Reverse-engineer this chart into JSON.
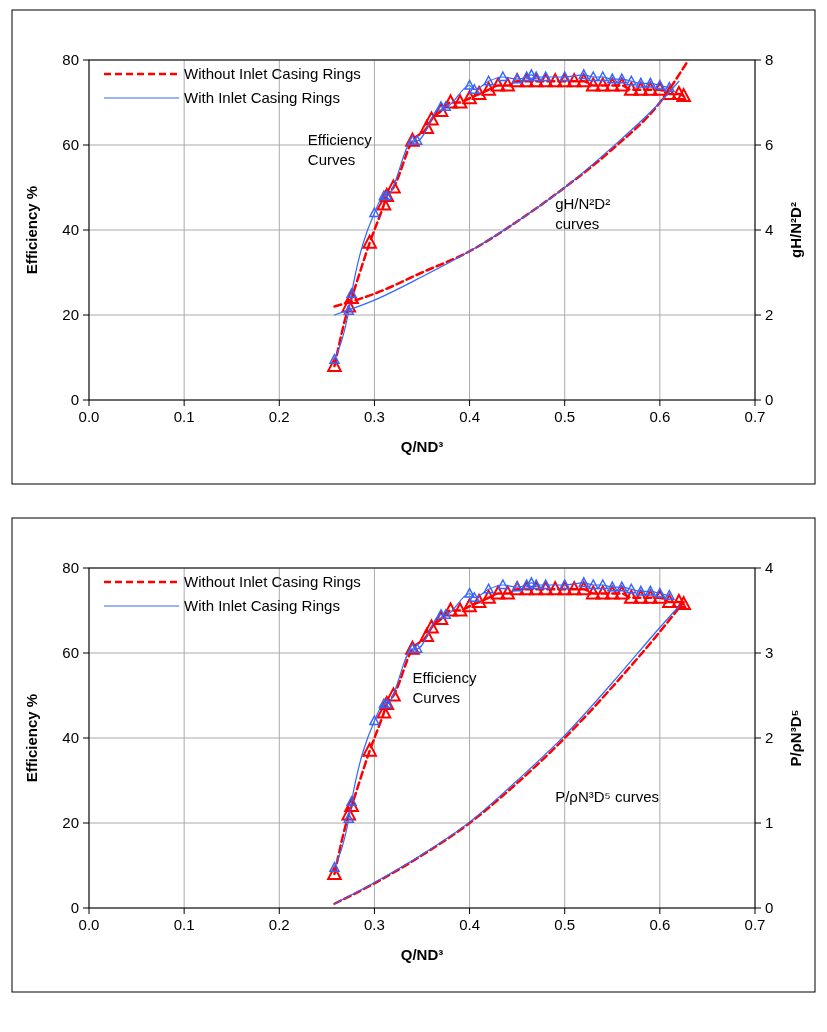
{
  "chart_data": [
    {
      "type": "line",
      "xlabel": "Q/ND³",
      "ylabel": "Efficiency %",
      "y2label": "gH/N²D²",
      "xlim": [
        0,
        0.7
      ],
      "xticks": [
        {
          "value": 0,
          "label": "0.0"
        },
        0.1,
        0.2,
        0.3,
        0.4,
        0.5,
        0.6,
        0.7
      ],
      "ylim": [
        0,
        80
      ],
      "yticks": [
        0,
        20,
        40,
        60,
        80
      ],
      "y2lim": [
        0,
        8
      ],
      "y2ticks": [
        0,
        2,
        4,
        6,
        8
      ],
      "grid": true,
      "legend": "top left",
      "annotations": [
        "Efficiency\nCurves",
        "gH/N²D²\ncurves"
      ],
      "series": [
        {
          "name": "Without Inlet Casing Rings",
          "color": "#ff0000",
          "line_style": "dashed",
          "marker": "triangle",
          "x": [
            0.258,
            0.273,
            0.276,
            0.295,
            0.31,
            0.313,
            0.32,
            0.34,
            0.355,
            0.36,
            0.37,
            0.38,
            0.39,
            0.4,
            0.41,
            0.42,
            0.43,
            0.44,
            0.45,
            0.46,
            0.47,
            0.48,
            0.49,
            0.5,
            0.51,
            0.52,
            0.53,
            0.54,
            0.55,
            0.56,
            0.57,
            0.58,
            0.59,
            0.6,
            0.61,
            0.62,
            0.625
          ],
          "values": [
            8,
            22,
            24,
            37,
            46,
            48,
            50,
            61,
            64,
            66,
            68,
            70,
            70,
            71,
            72,
            73,
            74,
            74,
            75,
            75,
            75,
            75,
            75,
            75,
            75,
            75,
            74,
            74,
            74,
            74,
            73,
            73,
            73,
            73,
            72,
            72,
            71.5
          ]
        },
        {
          "name": "With Inlet  Casing Rings",
          "color": "#3366ff",
          "line_style": "solid",
          "marker": "triangle",
          "x": [
            0.258,
            0.273,
            0.276,
            0.3,
            0.31,
            0.313,
            0.34,
            0.345,
            0.37,
            0.375,
            0.4,
            0.405,
            0.42,
            0.435,
            0.45,
            0.46,
            0.465,
            0.47,
            0.48,
            0.5,
            0.52,
            0.53,
            0.54,
            0.55,
            0.56,
            0.57,
            0.58,
            0.59,
            0.6,
            0.61
          ],
          "values": [
            9.5,
            21,
            25,
            44,
            48,
            48,
            61,
            61,
            69,
            69,
            74,
            73,
            75,
            76,
            75.5,
            76,
            76.5,
            76,
            76,
            76,
            76.5,
            76,
            76,
            75.5,
            75.5,
            75,
            74.5,
            74.5,
            74,
            73.5
          ]
        },
        {
          "color": "#ff0000",
          "axis": "y2",
          "line_style": "dashed",
          "marker": "none",
          "x": [
            0.258,
            0.3,
            0.35,
            0.4,
            0.45,
            0.5,
            0.55,
            0.6,
            0.63
          ],
          "values": [
            2.2,
            2.5,
            3.0,
            3.5,
            4.2,
            5.0,
            5.9,
            7.0,
            8.0
          ]
        },
        {
          "color": "#3366ff",
          "axis": "y2",
          "line_style": "solid",
          "marker": "none",
          "x": [
            0.258,
            0.3,
            0.35,
            0.4,
            0.45,
            0.5,
            0.55,
            0.6,
            0.62
          ],
          "values": [
            2.0,
            2.35,
            2.9,
            3.5,
            4.2,
            5.0,
            5.95,
            7.0,
            7.5
          ]
        }
      ]
    },
    {
      "type": "line",
      "xlabel": "Q/ND³",
      "ylabel": "Efficiency %",
      "y2label": "P/ρN³D⁵",
      "xlim": [
        0,
        0.7
      ],
      "xticks": [
        {
          "value": 0,
          "label": "0.0"
        },
        0.1,
        0.2,
        0.3,
        0.4,
        0.5,
        0.6,
        0.7
      ],
      "ylim": [
        0,
        80
      ],
      "yticks": [
        0,
        20,
        40,
        60,
        80
      ],
      "y2lim": [
        0,
        4
      ],
      "y2ticks": [
        0,
        1,
        2,
        3,
        4
      ],
      "grid": true,
      "legend": "top left",
      "annotations": [
        "Efficiency\nCurves",
        "P/ρN³D⁵ curves"
      ],
      "series": [
        {
          "name": "Without Inlet Casing Rings",
          "color": "#ff0000",
          "line_style": "dashed",
          "marker": "triangle",
          "x": [
            0.258,
            0.273,
            0.276,
            0.295,
            0.31,
            0.313,
            0.32,
            0.34,
            0.355,
            0.36,
            0.37,
            0.38,
            0.39,
            0.4,
            0.41,
            0.42,
            0.43,
            0.44,
            0.45,
            0.46,
            0.47,
            0.48,
            0.49,
            0.5,
            0.51,
            0.52,
            0.53,
            0.54,
            0.55,
            0.56,
            0.57,
            0.58,
            0.59,
            0.6,
            0.61,
            0.62,
            0.625
          ],
          "values": [
            8,
            22,
            24,
            37,
            46,
            48,
            50,
            61,
            64,
            66,
            68,
            70,
            70,
            71,
            72,
            73,
            74,
            74,
            75,
            75,
            75,
            75,
            75,
            75,
            75,
            75,
            74,
            74,
            74,
            74,
            73,
            73,
            73,
            73,
            72,
            72,
            71.5
          ]
        },
        {
          "name": "With Inlet  Casing Rings",
          "color": "#3366ff",
          "line_style": "solid",
          "marker": "triangle",
          "x": [
            0.258,
            0.273,
            0.276,
            0.3,
            0.31,
            0.313,
            0.34,
            0.345,
            0.37,
            0.375,
            0.4,
            0.405,
            0.42,
            0.435,
            0.45,
            0.46,
            0.465,
            0.47,
            0.48,
            0.5,
            0.52,
            0.53,
            0.54,
            0.55,
            0.56,
            0.57,
            0.58,
            0.59,
            0.6,
            0.61
          ],
          "values": [
            9.5,
            21,
            25,
            44,
            48,
            48,
            61,
            61,
            69,
            69,
            74,
            73,
            75,
            76,
            75.5,
            76,
            76.5,
            76,
            76,
            76,
            76.5,
            76,
            76,
            75.5,
            75.5,
            75,
            74.5,
            74.5,
            74,
            73.5
          ]
        },
        {
          "color": "#ff0000",
          "axis": "y2",
          "line_style": "dashed",
          "marker": "none",
          "x": [
            0.258,
            0.3,
            0.35,
            0.4,
            0.45,
            0.5,
            0.55,
            0.6,
            0.625
          ],
          "values": [
            0.05,
            0.29,
            0.62,
            1.0,
            1.47,
            2.0,
            2.6,
            3.25,
            3.6
          ]
        },
        {
          "color": "#3366ff",
          "axis": "y2",
          "line_style": "solid",
          "marker": "none",
          "x": [
            0.258,
            0.3,
            0.35,
            0.4,
            0.45,
            0.5,
            0.55,
            0.6,
            0.62
          ],
          "values": [
            0.05,
            0.3,
            0.63,
            1.01,
            1.5,
            2.03,
            2.65,
            3.3,
            3.55
          ]
        }
      ]
    }
  ]
}
